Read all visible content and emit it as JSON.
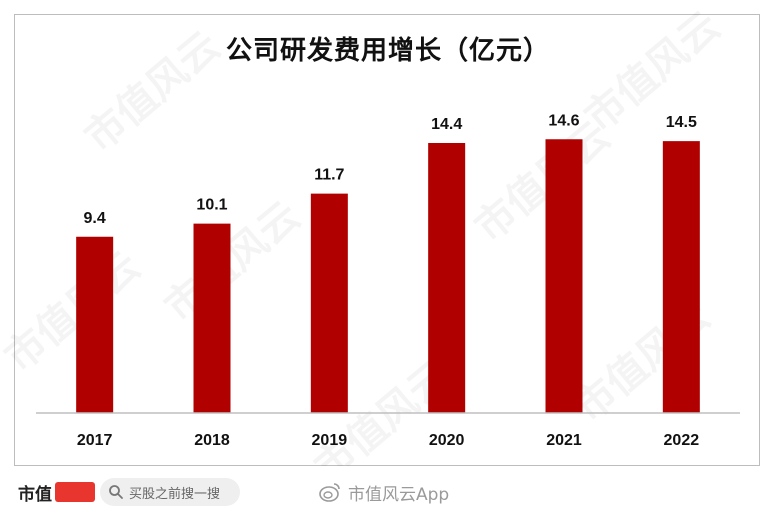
{
  "chart_data": {
    "type": "bar",
    "title": "公司研发费用增长（亿元）",
    "categories": [
      "2017",
      "2018",
      "2019",
      "2020",
      "2021",
      "2022"
    ],
    "values": [
      9.4,
      10.1,
      11.7,
      14.4,
      14.6,
      14.5
    ],
    "data_labels": [
      "9.4",
      "10.1",
      "11.7",
      "14.4",
      "14.6",
      "14.5"
    ],
    "ylim": [
      0,
      16
    ],
    "bar_color": "#b00000",
    "grid": false,
    "legend": "none"
  },
  "watermark": {
    "text": "市值风云"
  },
  "footer": {
    "brand": "市值",
    "search_placeholder": "买股之前搜一搜",
    "weibo_account": "市值风云App"
  }
}
